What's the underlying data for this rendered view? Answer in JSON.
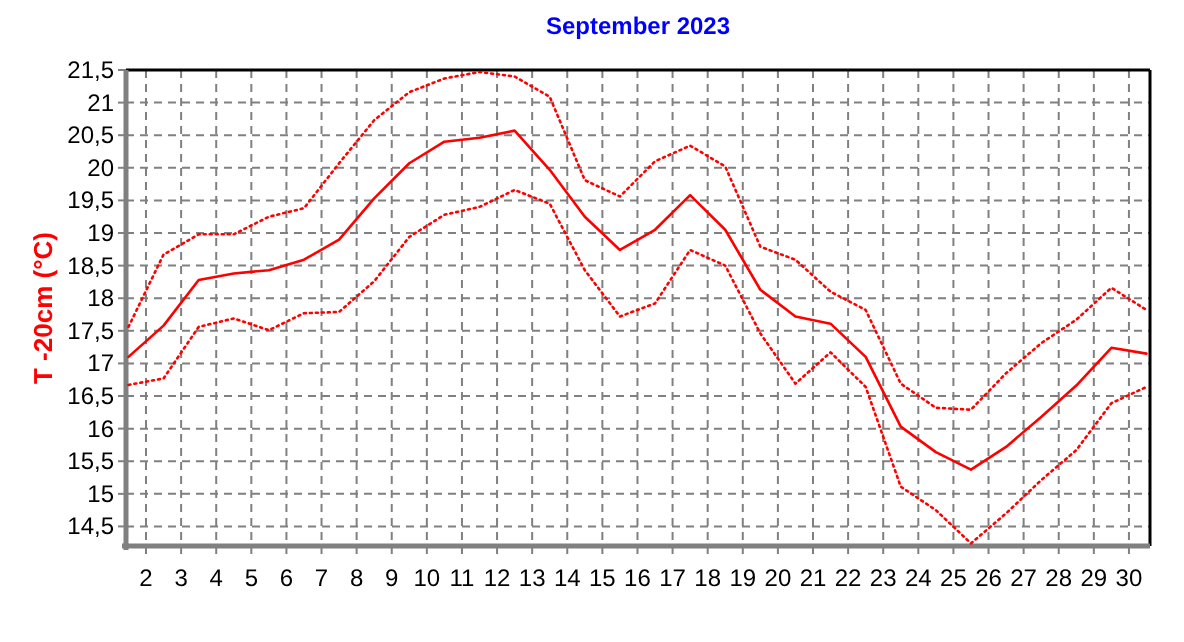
{
  "chart_data": {
    "type": "line",
    "title": "September 2023",
    "ylabel": "T -20cm (°C)",
    "x": [
      1.5,
      2.5,
      3.5,
      4.5,
      5.5,
      6.5,
      7.5,
      8.5,
      9.5,
      10.5,
      11.5,
      12.5,
      13.5,
      14.5,
      15.5,
      16.5,
      17.5,
      18.5,
      19.5,
      20.5,
      21.5,
      22.5,
      23.5,
      24.5,
      25.5,
      26.5,
      27.5,
      28.5,
      29.5,
      30.5
    ],
    "xlim": [
      1.43,
      30.6
    ],
    "xticks": [
      2,
      3,
      4,
      5,
      6,
      7,
      8,
      9,
      10,
      11,
      12,
      13,
      14,
      15,
      16,
      17,
      18,
      19,
      20,
      21,
      22,
      23,
      24,
      25,
      26,
      27,
      28,
      29,
      30
    ],
    "ylim": [
      14.2,
      21.5
    ],
    "yticks": [
      {
        "value": 14.5,
        "label": "14,5"
      },
      15,
      {
        "value": 15.5,
        "label": "15,5"
      },
      16,
      {
        "value": 16.5,
        "label": "16,5"
      },
      17,
      {
        "value": 17.5,
        "label": "17,5"
      },
      18,
      {
        "value": 18.5,
        "label": "18,5"
      },
      19,
      {
        "value": 19.5,
        "label": "19,5"
      },
      20,
      {
        "value": 20.5,
        "label": "20,5"
      },
      21,
      {
        "value": 21.5,
        "label": "21,5"
      }
    ],
    "grid": true,
    "marker": "none",
    "series": [
      {
        "color": "#ff0000",
        "line_style": "dotted",
        "values": [
          17.56,
          18.67,
          18.98,
          18.98,
          19.25,
          19.38,
          20.07,
          20.73,
          21.16,
          21.37,
          21.47,
          21.4,
          21.09,
          19.81,
          19.56,
          20.1,
          20.34,
          20.02,
          18.79,
          18.59,
          18.1,
          17.82,
          16.69,
          16.32,
          16.29,
          16.85,
          17.31,
          17.67,
          18.16,
          17.82
        ]
      },
      {
        "color": "#ff0000",
        "line_style": "solid",
        "values": [
          17.1,
          17.58,
          18.28,
          18.38,
          18.43,
          18.59,
          18.9,
          19.53,
          20.07,
          20.4,
          20.46,
          20.57,
          19.97,
          19.25,
          18.74,
          19.05,
          19.58,
          19.05,
          18.13,
          17.72,
          17.61,
          17.1,
          16.03,
          15.64,
          15.37,
          15.72,
          16.18,
          16.66,
          17.24,
          17.15
        ]
      },
      {
        "color": "#ff0000",
        "line_style": "dotted",
        "values": [
          16.67,
          16.77,
          17.56,
          17.69,
          17.51,
          17.77,
          17.79,
          18.26,
          18.94,
          19.28,
          19.4,
          19.66,
          19.45,
          18.43,
          17.72,
          17.92,
          18.74,
          18.5,
          17.46,
          16.69,
          17.17,
          16.64,
          15.11,
          14.75,
          14.24,
          14.7,
          15.21,
          15.67,
          16.39,
          16.64
        ]
      }
    ]
  }
}
